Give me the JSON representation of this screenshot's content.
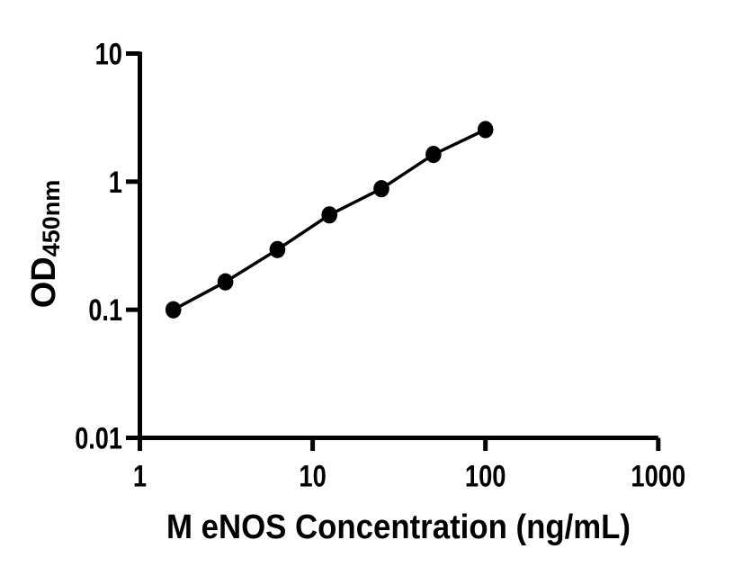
{
  "figure": {
    "background_color": "#ffffff",
    "ink_color": "#000000"
  },
  "chart_data": {
    "type": "scatter",
    "subtype": "log-log standard curve with connecting line segments",
    "x": [
      1.5625,
      3.125,
      6.25,
      12.5,
      25,
      50,
      100
    ],
    "y": [
      0.1,
      0.165,
      0.295,
      0.55,
      0.88,
      1.63,
      2.55
    ],
    "x_scale": "log10",
    "y_scale": "log10",
    "xlim": [
      1,
      1000
    ],
    "ylim": [
      0.01,
      10
    ],
    "x_ticks": [
      1,
      10,
      100,
      1000
    ],
    "x_tick_labels": [
      "1",
      "10",
      "100",
      "1000"
    ],
    "y_ticks": [
      10,
      1,
      0.1,
      0.01
    ],
    "y_tick_labels": [
      "10",
      "1",
      "0.1",
      "0.01"
    ],
    "xlabel": "M eNOS Concentration (ng/mL)",
    "ylabel_main": "OD",
    "ylabel_sub": "450nm",
    "marker": "filled-circle",
    "marker_color": "#000000",
    "line_color": "#000000",
    "grid": false,
    "legend": null,
    "title": ""
  }
}
